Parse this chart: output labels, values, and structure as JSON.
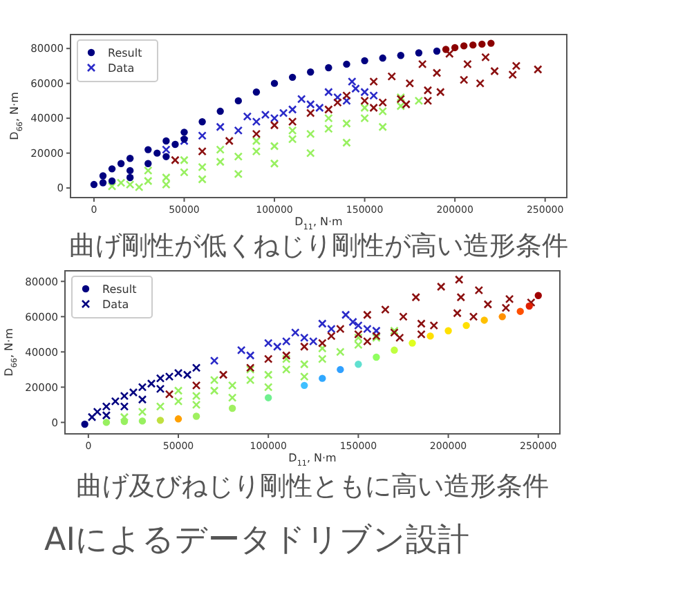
{
  "chart_data": [
    {
      "type": "scatter",
      "title": "曲げ剛性が低くねじり剛性が高い造形条件",
      "xlabel": "D$_{11}$, N·m",
      "ylabel": "D$_{66}$, N·m",
      "xlim": [
        -13000,
        262000
      ],
      "ylim": [
        -5500,
        88000
      ],
      "xticks": [
        0,
        50000,
        100000,
        150000,
        200000,
        250000
      ],
      "yticks": [
        0,
        20000,
        40000,
        60000,
        80000
      ],
      "grid": false,
      "legend": "top left",
      "series": [
        {
          "name": "Data",
          "marker": "cross",
          "color": "#2a2ac8",
          "x": [
            10000,
            20000,
            30000,
            40000,
            50000,
            60000,
            70000,
            80000,
            90000,
            100000,
            110000,
            120000,
            130000,
            140000,
            150000,
            160000,
            170000,
            180000,
            30000,
            50000,
            70000,
            90000,
            110000,
            130000,
            150000,
            170000,
            40000,
            60000,
            80000,
            100000,
            120000,
            140000,
            160000,
            25000,
            15000,
            40000,
            50000,
            60000,
            70000,
            80000,
            85000,
            90000,
            95000,
            100000,
            105000,
            110000,
            115000,
            120000,
            125000,
            130000,
            135000,
            140000,
            143000,
            145000,
            150000,
            155000,
            45000,
            60000,
            75000,
            90000,
            100000,
            110000,
            120000,
            130000,
            135000,
            140000,
            150000,
            155000,
            160000,
            155000,
            165000,
            170000,
            175000,
            173000,
            182000,
            185000,
            185000,
            192000,
            190000,
            197000,
            205000,
            207000,
            214000,
            217000,
            222000,
            232000,
            234000,
            246000
          ],
          "values": [
            1000,
            2000,
            4000,
            6000,
            9000,
            12000,
            15000,
            18000,
            21000,
            24000,
            28000,
            31000,
            34000,
            37000,
            40000,
            44000,
            47000,
            50000,
            10000,
            16000,
            22000,
            27000,
            33000,
            40000,
            46000,
            52000,
            2000,
            5000,
            8000,
            14000,
            20000,
            26000,
            35000,
            500,
            3000,
            22000,
            27000,
            30000,
            35000,
            33000,
            41000,
            38000,
            42000,
            40000,
            43000,
            45000,
            51000,
            48000,
            46000,
            55000,
            52000,
            50000,
            61000,
            57000,
            55000,
            53000,
            16000,
            21000,
            27000,
            31000,
            36000,
            38000,
            43000,
            45000,
            49000,
            53000,
            50000,
            46000,
            49000,
            61000,
            64000,
            51000,
            60000,
            48000,
            71000,
            56000,
            50000,
            55000,
            66000,
            77000,
            62000,
            71000,
            60000,
            75000,
            67000,
            65000,
            70000,
            68000
          ],
          "colors": [
            "#98f060",
            "#98f060",
            "#98f060",
            "#98f060",
            "#98f060",
            "#98f060",
            "#98f060",
            "#98f060",
            "#98f060",
            "#98f060",
            "#98f060",
            "#98f060",
            "#98f060",
            "#98f060",
            "#98f060",
            "#98f060",
            "#98f060",
            "#98f060",
            "#98f060",
            "#98f060",
            "#98f060",
            "#98f060",
            "#98f060",
            "#98f060",
            "#98f060",
            "#98f060",
            "#98f060",
            "#98f060",
            "#98f060",
            "#98f060",
            "#98f060",
            "#98f060",
            "#98f060",
            "#98f060",
            "#98f060",
            "#2a2ac8",
            "#2a2ac8",
            "#2a2ac8",
            "#2a2ac8",
            "#2a2ac8",
            "#2a2ac8",
            "#2a2ac8",
            "#2a2ac8",
            "#2a2ac8",
            "#2a2ac8",
            "#2a2ac8",
            "#2a2ac8",
            "#2a2ac8",
            "#2a2ac8",
            "#2a2ac8",
            "#2a2ac8",
            "#2a2ac8",
            "#2a2ac8",
            "#2a2ac8",
            "#2a2ac8",
            "#2a2ac8",
            "#8b1010",
            "#8b1010",
            "#8b1010",
            "#8b1010",
            "#8b1010",
            "#8b1010",
            "#8b1010",
            "#8b1010",
            "#8b1010",
            "#8b1010",
            "#8b1010",
            "#8b1010",
            "#8b1010",
            "#8b1010",
            "#8b1010",
            "#8b1010",
            "#8b1010",
            "#8b1010",
            "#8b1010",
            "#8b1010",
            "#8b1010",
            "#8b1010",
            "#8b1010",
            "#8b1010",
            "#8b1010",
            "#8b1010",
            "#8b1010",
            "#8b1010",
            "#8b1010",
            "#8b1010",
            "#8b1010",
            "#8b1010"
          ]
        },
        {
          "name": "Result",
          "marker": "circle",
          "color": "#000080",
          "x": [
            0,
            5000,
            10000,
            15000,
            20000,
            30000,
            40000,
            50000,
            60000,
            70000,
            80000,
            90000,
            100000,
            110000,
            120000,
            130000,
            140000,
            150000,
            160000,
            170000,
            180000,
            190000,
            195000,
            200000,
            205000,
            210000,
            215000,
            220000,
            10000,
            20000,
            30000,
            40000,
            20000,
            45000,
            50000,
            5000,
            35000
          ],
          "values": [
            2000,
            7000,
            11000,
            14000,
            17000,
            22000,
            27000,
            32000,
            38000,
            44000,
            50000,
            55000,
            60000,
            63500,
            66500,
            69000,
            71000,
            73000,
            74500,
            76000,
            77500,
            78500,
            79500,
            80500,
            81500,
            82000,
            82500,
            83000,
            4000,
            10000,
            14000,
            18000,
            6000,
            25000,
            28000,
            3000,
            20000
          ],
          "colors": [
            "#000080",
            "#000080",
            "#000080",
            "#000080",
            "#000080",
            "#000080",
            "#000080",
            "#000080",
            "#000080",
            "#000080",
            "#000080",
            "#000080",
            "#000080",
            "#000080",
            "#000080",
            "#000080",
            "#000080",
            "#000080",
            "#000080",
            "#000080",
            "#000080",
            "#000080",
            "#8b0000",
            "#8b0000",
            "#8b0000",
            "#8b0000",
            "#8b0000",
            "#8b0000",
            "#000080",
            "#000080",
            "#000080",
            "#000080",
            "#000080",
            "#000080",
            "#000080",
            "#000080",
            "#000080"
          ]
        }
      ]
    },
    {
      "type": "scatter",
      "title": "曲げ及びねじり剛性ともに高い造形条件",
      "xlabel": "D$_{11}$, N·m",
      "ylabel": "D$_{66}$, N·m",
      "xlim": [
        -13000,
        262000
      ],
      "ylim": [
        -6500,
        86000
      ],
      "xticks": [
        0,
        50000,
        100000,
        150000,
        200000,
        250000
      ],
      "yticks": [
        0,
        20000,
        40000,
        60000,
        80000
      ],
      "grid": false,
      "legend": "top left",
      "annotations": [
        "AIによるデータドリブン設計"
      ],
      "series": [
        {
          "name": "Data",
          "marker": "cross",
          "color": "#000080",
          "x": [
            20000,
            30000,
            40000,
            50000,
            60000,
            70000,
            80000,
            90000,
            100000,
            110000,
            120000,
            130000,
            140000,
            150000,
            160000,
            170000,
            50000,
            70000,
            90000,
            110000,
            130000,
            150000,
            60000,
            80000,
            100000,
            120000,
            2000,
            5000,
            10000,
            15000,
            20000,
            25000,
            30000,
            35000,
            40000,
            45000,
            50000,
            55000,
            60000,
            10000,
            20000,
            30000,
            40000,
            70000,
            85000,
            90000,
            100000,
            105000,
            110000,
            115000,
            120000,
            125000,
            130000,
            135000,
            143000,
            147000,
            150000,
            155000,
            160000,
            45000,
            60000,
            75000,
            90000,
            100000,
            110000,
            120000,
            130000,
            135000,
            140000,
            150000,
            155000,
            160000,
            155000,
            165000,
            170000,
            175000,
            173000,
            182000,
            185000,
            185000,
            192000,
            196000,
            205000,
            206000,
            207000,
            214000,
            217000,
            222000,
            232000,
            234000,
            246000
          ],
          "values": [
            3000,
            6000,
            9000,
            12000,
            15000,
            18000,
            21000,
            24000,
            27000,
            30000,
            33000,
            36000,
            40000,
            44000,
            48000,
            52000,
            18000,
            24000,
            30000,
            36000,
            42000,
            48000,
            10000,
            14000,
            20000,
            26000,
            3000,
            6000,
            9000,
            12000,
            15000,
            17000,
            20000,
            22000,
            25000,
            26000,
            28000,
            27000,
            31000,
            4000,
            9000,
            13000,
            19000,
            35000,
            41000,
            38000,
            45000,
            43000,
            46000,
            51000,
            48000,
            46000,
            56000,
            53000,
            61000,
            57000,
            55000,
            53000,
            52000,
            16000,
            21000,
            27000,
            31000,
            36000,
            38000,
            43000,
            45000,
            49000,
            53000,
            50000,
            46000,
            49000,
            61000,
            64000,
            51000,
            60000,
            48000,
            71000,
            56000,
            50000,
            55000,
            77000,
            62000,
            81000,
            71000,
            60000,
            75000,
            67000,
            65000,
            70000,
            68000
          ],
          "colors": [
            "#98f060",
            "#98f060",
            "#98f060",
            "#98f060",
            "#98f060",
            "#98f060",
            "#98f060",
            "#98f060",
            "#98f060",
            "#98f060",
            "#98f060",
            "#98f060",
            "#98f060",
            "#98f060",
            "#98f060",
            "#98f060",
            "#98f060",
            "#98f060",
            "#98f060",
            "#98f060",
            "#98f060",
            "#98f060",
            "#98f060",
            "#98f060",
            "#98f060",
            "#98f060",
            "#000080",
            "#000080",
            "#000080",
            "#000080",
            "#000080",
            "#000080",
            "#000080",
            "#000080",
            "#000080",
            "#000080",
            "#000080",
            "#000080",
            "#000080",
            "#000080",
            "#000080",
            "#000080",
            "#000080",
            "#2a2ac8",
            "#2a2ac8",
            "#2a2ac8",
            "#2a2ac8",
            "#2a2ac8",
            "#2a2ac8",
            "#2a2ac8",
            "#2a2ac8",
            "#2a2ac8",
            "#2a2ac8",
            "#2a2ac8",
            "#2a2ac8",
            "#2a2ac8",
            "#2a2ac8",
            "#2a2ac8",
            "#2a2ac8",
            "#8b1010",
            "#8b1010",
            "#8b1010",
            "#8b1010",
            "#8b1010",
            "#8b1010",
            "#8b1010",
            "#8b1010",
            "#8b1010",
            "#8b1010",
            "#8b1010",
            "#8b1010",
            "#8b1010",
            "#8b1010",
            "#8b1010",
            "#8b1010",
            "#8b1010",
            "#8b1010",
            "#8b1010",
            "#8b1010",
            "#8b1010",
            "#8b1010",
            "#8b1010",
            "#8b1010",
            "#8b1010",
            "#8b1010",
            "#8b1010",
            "#8b1010",
            "#8b1010",
            "#8b1010",
            "#8b1010",
            "#8b1010"
          ]
        },
        {
          "name": "Result",
          "marker": "circle",
          "color": "#000080",
          "x": [
            -2000,
            10000,
            20000,
            30000,
            40000,
            50000,
            60000,
            80000,
            100000,
            120000,
            130000,
            140000,
            150000,
            160000,
            170000,
            180000,
            190000,
            200000,
            210000,
            220000,
            230000,
            240000,
            245000,
            250000
          ],
          "values": [
            -1000,
            0,
            500,
            800,
            1200,
            2000,
            3500,
            8000,
            14000,
            21000,
            25000,
            30000,
            33000,
            37000,
            41000,
            45000,
            49000,
            52000,
            55000,
            58000,
            60000,
            63000,
            66000,
            72000
          ],
          "colors": [
            "#000080",
            "#98f060",
            "#98f060",
            "#98f060",
            "#c0e040",
            "#ffa000",
            "#a0f060",
            "#a0f060",
            "#70f090",
            "#40c0ff",
            "#30a8ff",
            "#30a0ff",
            "#60e0d0",
            "#90ff60",
            "#c0ff40",
            "#e0ff20",
            "#ffe000",
            "#ffe000",
            "#ffe000",
            "#ffc000",
            "#ff9000",
            "#ff5000",
            "#e02000",
            "#a00000"
          ]
        }
      ]
    }
  ]
}
